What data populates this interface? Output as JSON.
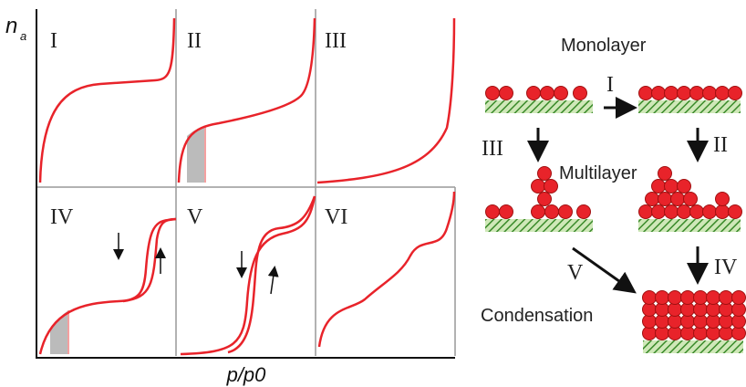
{
  "axis": {
    "y_label": "n",
    "y_label_sub": "a",
    "x_label": "p/p0"
  },
  "panels": [
    "I",
    "II",
    "III",
    "IV",
    "V",
    "VI"
  ],
  "diagram": {
    "monolayer": "Monolayer",
    "multilayer": "Multilayer",
    "condensation": "Condensation",
    "arrows": [
      "I",
      "II",
      "III",
      "IV",
      "V"
    ]
  }
}
